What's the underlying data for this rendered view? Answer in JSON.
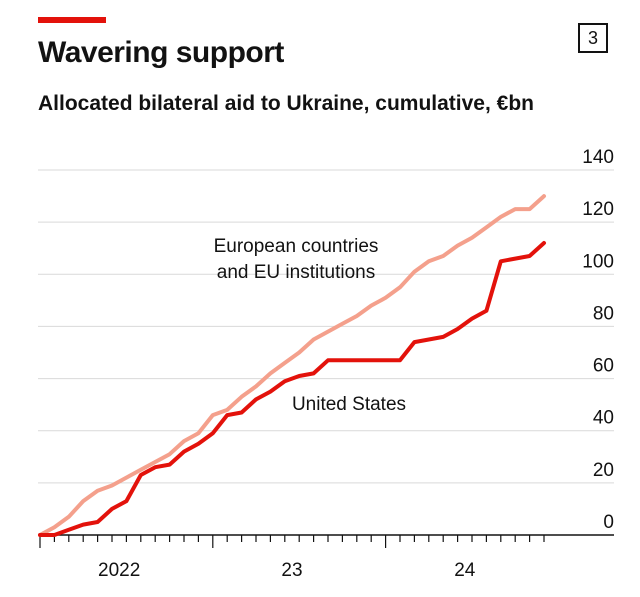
{
  "header": {
    "title": "Wavering support",
    "subtitle": "Allocated bilateral aid to Ukraine, cumulative, €bn",
    "chart_number": "3",
    "accent_color": "#e3120b"
  },
  "chart_data": {
    "type": "line",
    "title": "Wavering support",
    "subtitle": "Allocated bilateral aid to Ukraine, cumulative, €bn",
    "ylim": [
      0,
      140
    ],
    "yticks": [
      "0",
      "20",
      "40",
      "60",
      "80",
      "100",
      "120",
      "140"
    ],
    "y_axis_side": "right",
    "xticks": [
      "2022",
      "23",
      "24"
    ],
    "grid": true,
    "x_unit": "month",
    "x": [
      "2022-01",
      "2022-02",
      "2022-03",
      "2022-04",
      "2022-05",
      "2022-06",
      "2022-07",
      "2022-08",
      "2022-09",
      "2022-10",
      "2022-11",
      "2022-12",
      "2023-01",
      "2023-02",
      "2023-03",
      "2023-04",
      "2023-05",
      "2023-06",
      "2023-07",
      "2023-08",
      "2023-09",
      "2023-10",
      "2023-11",
      "2023-12",
      "2024-01",
      "2024-02",
      "2024-03",
      "2024-04",
      "2024-05",
      "2024-06",
      "2024-07",
      "2024-08",
      "2024-09",
      "2024-10",
      "2024-11",
      "2024-12"
    ],
    "series": [
      {
        "name": "European countries and EU institutions",
        "label_lines": [
          "European countries",
          "and EU institutions"
        ],
        "color": "#f4a08c",
        "values": [
          0,
          3,
          7,
          13,
          17,
          19,
          22,
          25,
          28,
          31,
          36,
          39,
          46,
          48,
          53,
          57,
          62,
          66,
          70,
          75,
          78,
          81,
          84,
          88,
          91,
          95,
          101,
          105,
          107,
          111,
          114,
          118,
          122,
          125,
          125,
          130
        ]
      },
      {
        "name": "United States",
        "label_lines": [
          "United States"
        ],
        "color": "#e3120b",
        "values": [
          0,
          0,
          2,
          4,
          5,
          10,
          13,
          23,
          26,
          27,
          32,
          35,
          39,
          46,
          47,
          52,
          55,
          59,
          61,
          62,
          67,
          67,
          67,
          67,
          67,
          67,
          74,
          75,
          76,
          79,
          83,
          86,
          105,
          106,
          107,
          112
        ]
      }
    ]
  }
}
